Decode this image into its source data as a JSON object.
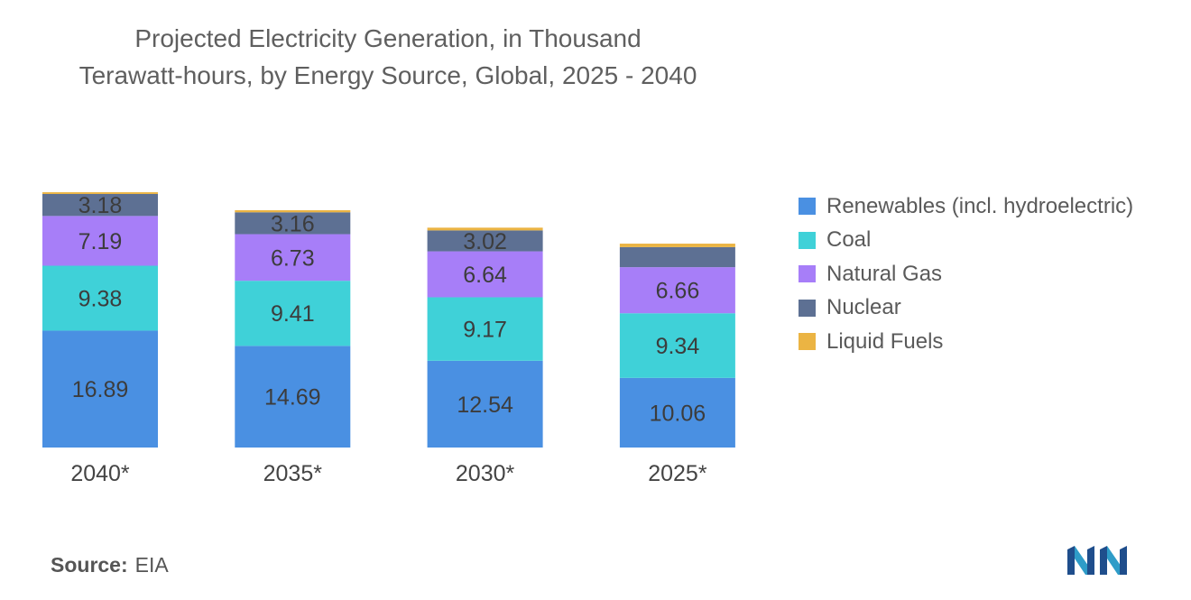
{
  "title": {
    "line1": "Projected Electricity Generation, in Thousand",
    "line2": "Terawatt-hours, by Energy Source, Global, 2025 - 2040"
  },
  "chart_data": {
    "type": "bar",
    "stacked": true,
    "title": "Projected Electricity Generation, in Thousand Terawatt-hours, by Energy Source, Global, 2025 - 2040",
    "categories": [
      "2040*",
      "2035*",
      "2030*",
      "2025*"
    ],
    "series": [
      {
        "name": "Renewables (incl. hydroelectric)",
        "color": "#4a90e2",
        "values": [
          16.89,
          14.69,
          12.54,
          10.06
        ],
        "labels": [
          "16.89",
          "14.69",
          "12.54",
          "10.06"
        ]
      },
      {
        "name": "Coal",
        "color": "#3fd1d8",
        "values": [
          9.38,
          9.41,
          9.17,
          9.34
        ],
        "labels": [
          "9.38",
          "9.41",
          "9.17",
          "9.34"
        ]
      },
      {
        "name": "Natural Gas",
        "color": "#a77ef8",
        "values": [
          7.19,
          6.73,
          6.64,
          6.66
        ],
        "labels": [
          "7.19",
          "6.73",
          "6.64",
          "6.66"
        ]
      },
      {
        "name": "Nuclear",
        "color": "#5d7093",
        "values": [
          3.18,
          3.16,
          3.02,
          2.9
        ],
        "labels": [
          "3.18",
          "3.16",
          "3.02",
          ""
        ]
      },
      {
        "name": "Liquid Fuels",
        "color": "#ebb443",
        "values": [
          0.25,
          0.3,
          0.4,
          0.5
        ],
        "labels": [
          "",
          "",
          "",
          ""
        ]
      }
    ],
    "xlabel": "",
    "ylabel": "",
    "grid": false,
    "legend_position": "right"
  },
  "source": {
    "label": "Source:",
    "value": "EIA"
  }
}
